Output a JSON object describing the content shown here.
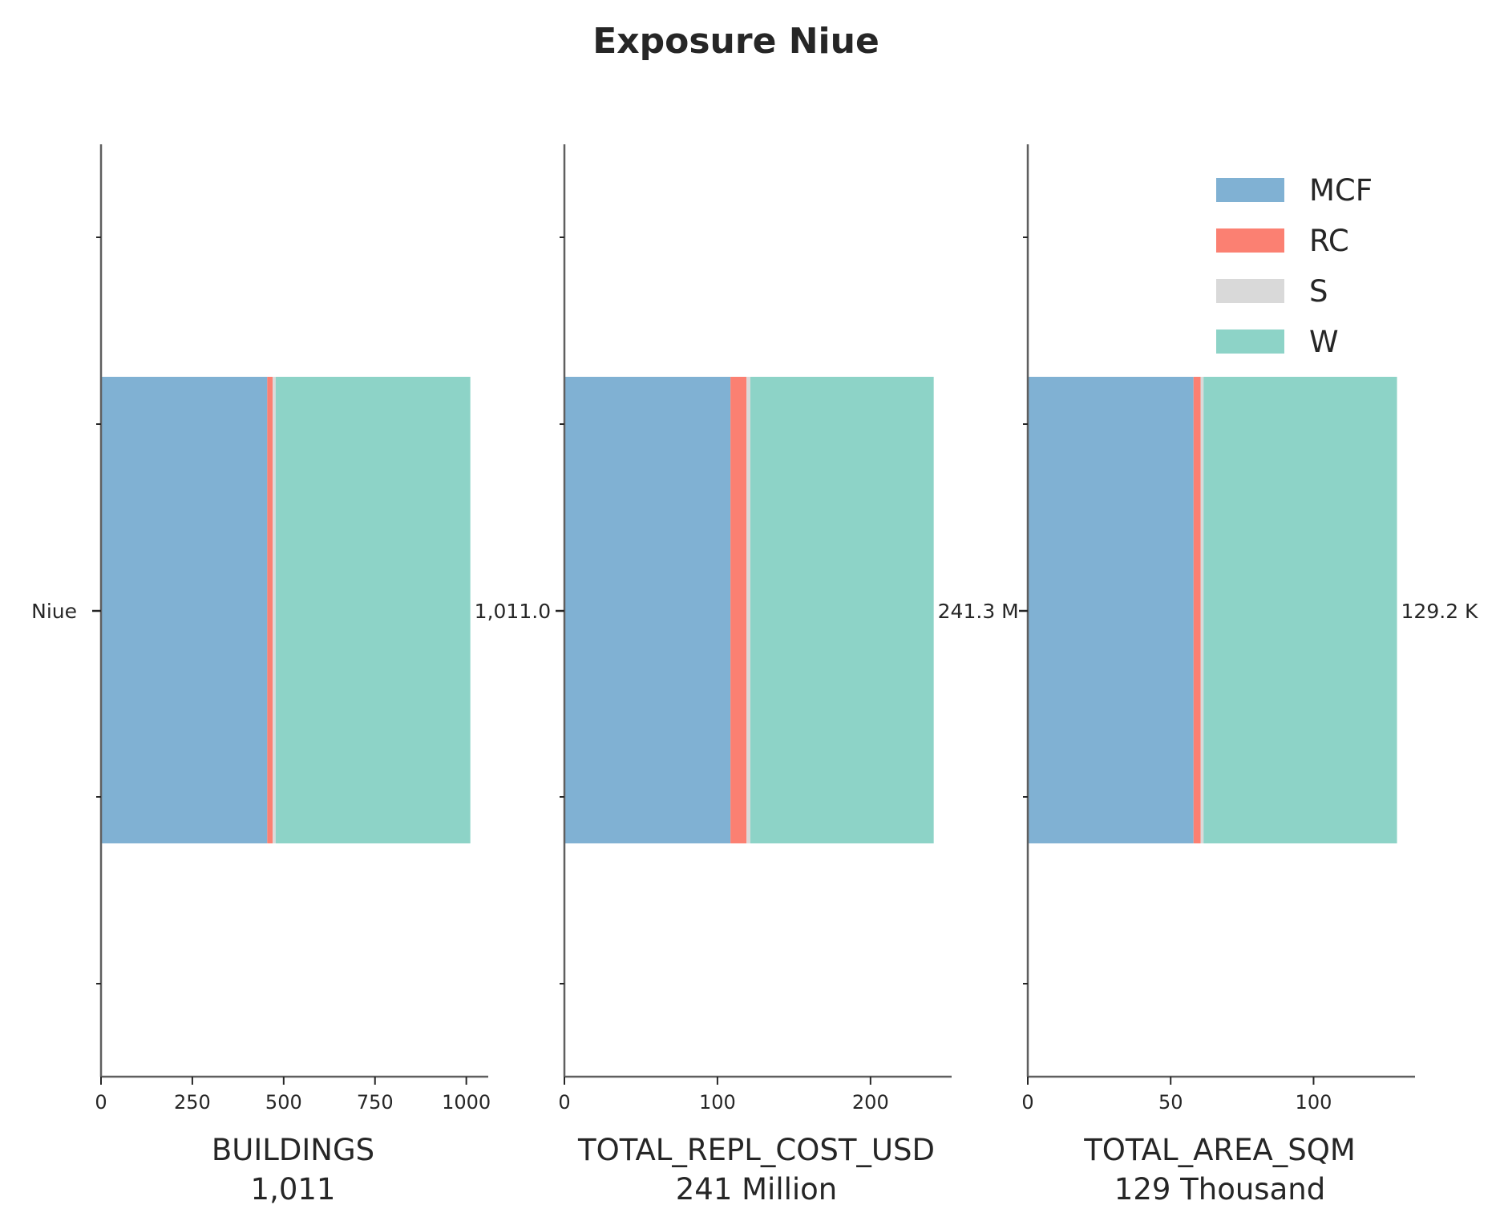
{
  "chart_data": {
    "type": "bar",
    "orientation": "horizontal",
    "stacked": true,
    "title": "Exposure Niue",
    "category": "Niue",
    "legend": {
      "placement": "top-right",
      "entries": [
        "MCF",
        "RC",
        "S",
        "W"
      ]
    },
    "colors": {
      "MCF": "#80b1d3",
      "RC": "#fb8072",
      "S": "#d9d9d9",
      "W": "#8dd3c7"
    },
    "panels": [
      {
        "xlabel": "BUILDINGS",
        "total_label": "1,011",
        "bar_label": "1,011.0",
        "xlim": [
          0,
          1060
        ],
        "xticks": [
          0,
          250,
          500,
          750,
          1000
        ],
        "xtick_labels": [
          "0",
          "250",
          "500",
          "750",
          "1000"
        ],
        "series": [
          {
            "name": "MCF",
            "value": 455
          },
          {
            "name": "RC",
            "value": 15
          },
          {
            "name": "S",
            "value": 8
          },
          {
            "name": "W",
            "value": 533
          }
        ]
      },
      {
        "xlabel": "TOTAL_REPL_COST_USD",
        "total_label": "241 Million",
        "bar_label": "241.3 M",
        "xlim": [
          0,
          253
        ],
        "xticks": [
          0,
          100,
          200
        ],
        "xtick_labels": [
          "0",
          "100",
          "200"
        ],
        "series": [
          {
            "name": "MCF",
            "value": 108.5
          },
          {
            "name": "RC",
            "value": 10.5
          },
          {
            "name": "S",
            "value": 2.5
          },
          {
            "name": "W",
            "value": 119.8
          }
        ]
      },
      {
        "xlabel": "TOTAL_AREA_SQM",
        "total_label": "129 Thousand",
        "bar_label": "129.2 K",
        "xlim": [
          0,
          135.5
        ],
        "xticks": [
          0,
          50,
          100
        ],
        "xtick_labels": [
          "0",
          "50",
          "100"
        ],
        "series": [
          {
            "name": "MCF",
            "value": 58.0
          },
          {
            "name": "RC",
            "value": 2.5
          },
          {
            "name": "S",
            "value": 1.0
          },
          {
            "name": "W",
            "value": 67.7
          }
        ]
      }
    ]
  }
}
